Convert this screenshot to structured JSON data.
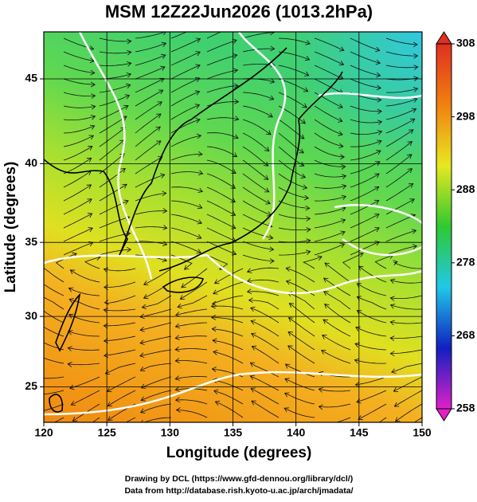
{
  "chart_data": {
    "type": "map",
    "title": "MSM 12Z22Jun2026 (1013.2hPa)",
    "x_label": "Longitude (degrees)",
    "y_label": "Latitude  (degrees)",
    "projection": "mercator",
    "xlim": [
      120,
      150
    ],
    "ylim": [
      22.4,
      47.6
    ],
    "xticks": [
      120,
      125,
      130,
      135,
      140,
      145,
      150
    ],
    "yticks": [
      25,
      30,
      35,
      40,
      45
    ],
    "grid": true,
    "colorbar": {
      "lim": [
        258,
        308
      ],
      "ticks": [
        258,
        268,
        278,
        288,
        298,
        308
      ],
      "colors": [
        "#e020c8",
        "#1020c0",
        "#20c8e8",
        "#30c830",
        "#e8e820",
        "#f08010",
        "#e03020"
      ]
    },
    "credits": [
      "Drawing by DCL (https://www.gfd-dennou.org/library/dcl/)",
      "Data from http://database.rish.kyoto-u.ac.jp/arch/jmadata/"
    ]
  }
}
